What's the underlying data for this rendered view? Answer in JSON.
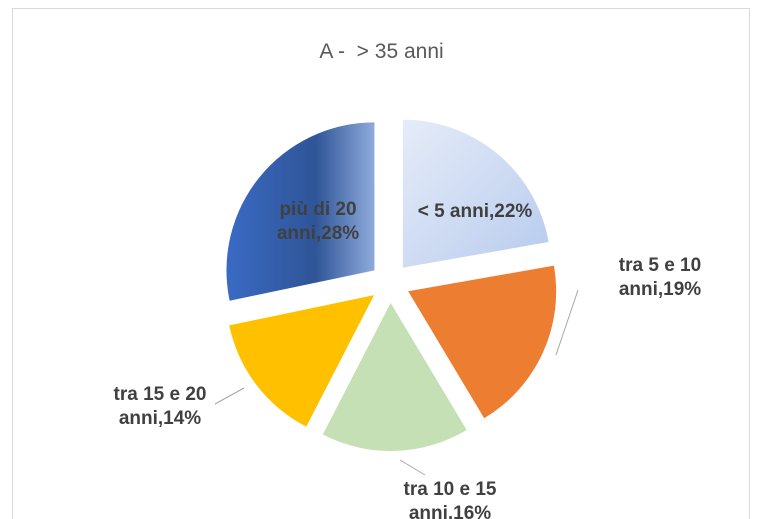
{
  "chart_data": {
    "type": "pie",
    "title": "A -  > 35 anni",
    "values": [
      22,
      19,
      16,
      14,
      28
    ],
    "value_labels": [
      "< 5 anni,22%",
      "tra 5 e 10 anni,19%",
      "tra 10 e 15 anni,16%",
      "tra 15 e 20 anni,14%",
      "più di 20 anni,28%"
    ],
    "colors": [
      "#c9d8f1",
      "#ed7d31",
      "#c5e0b4",
      "#ffc000",
      "#3a6ac4"
    ]
  }
}
